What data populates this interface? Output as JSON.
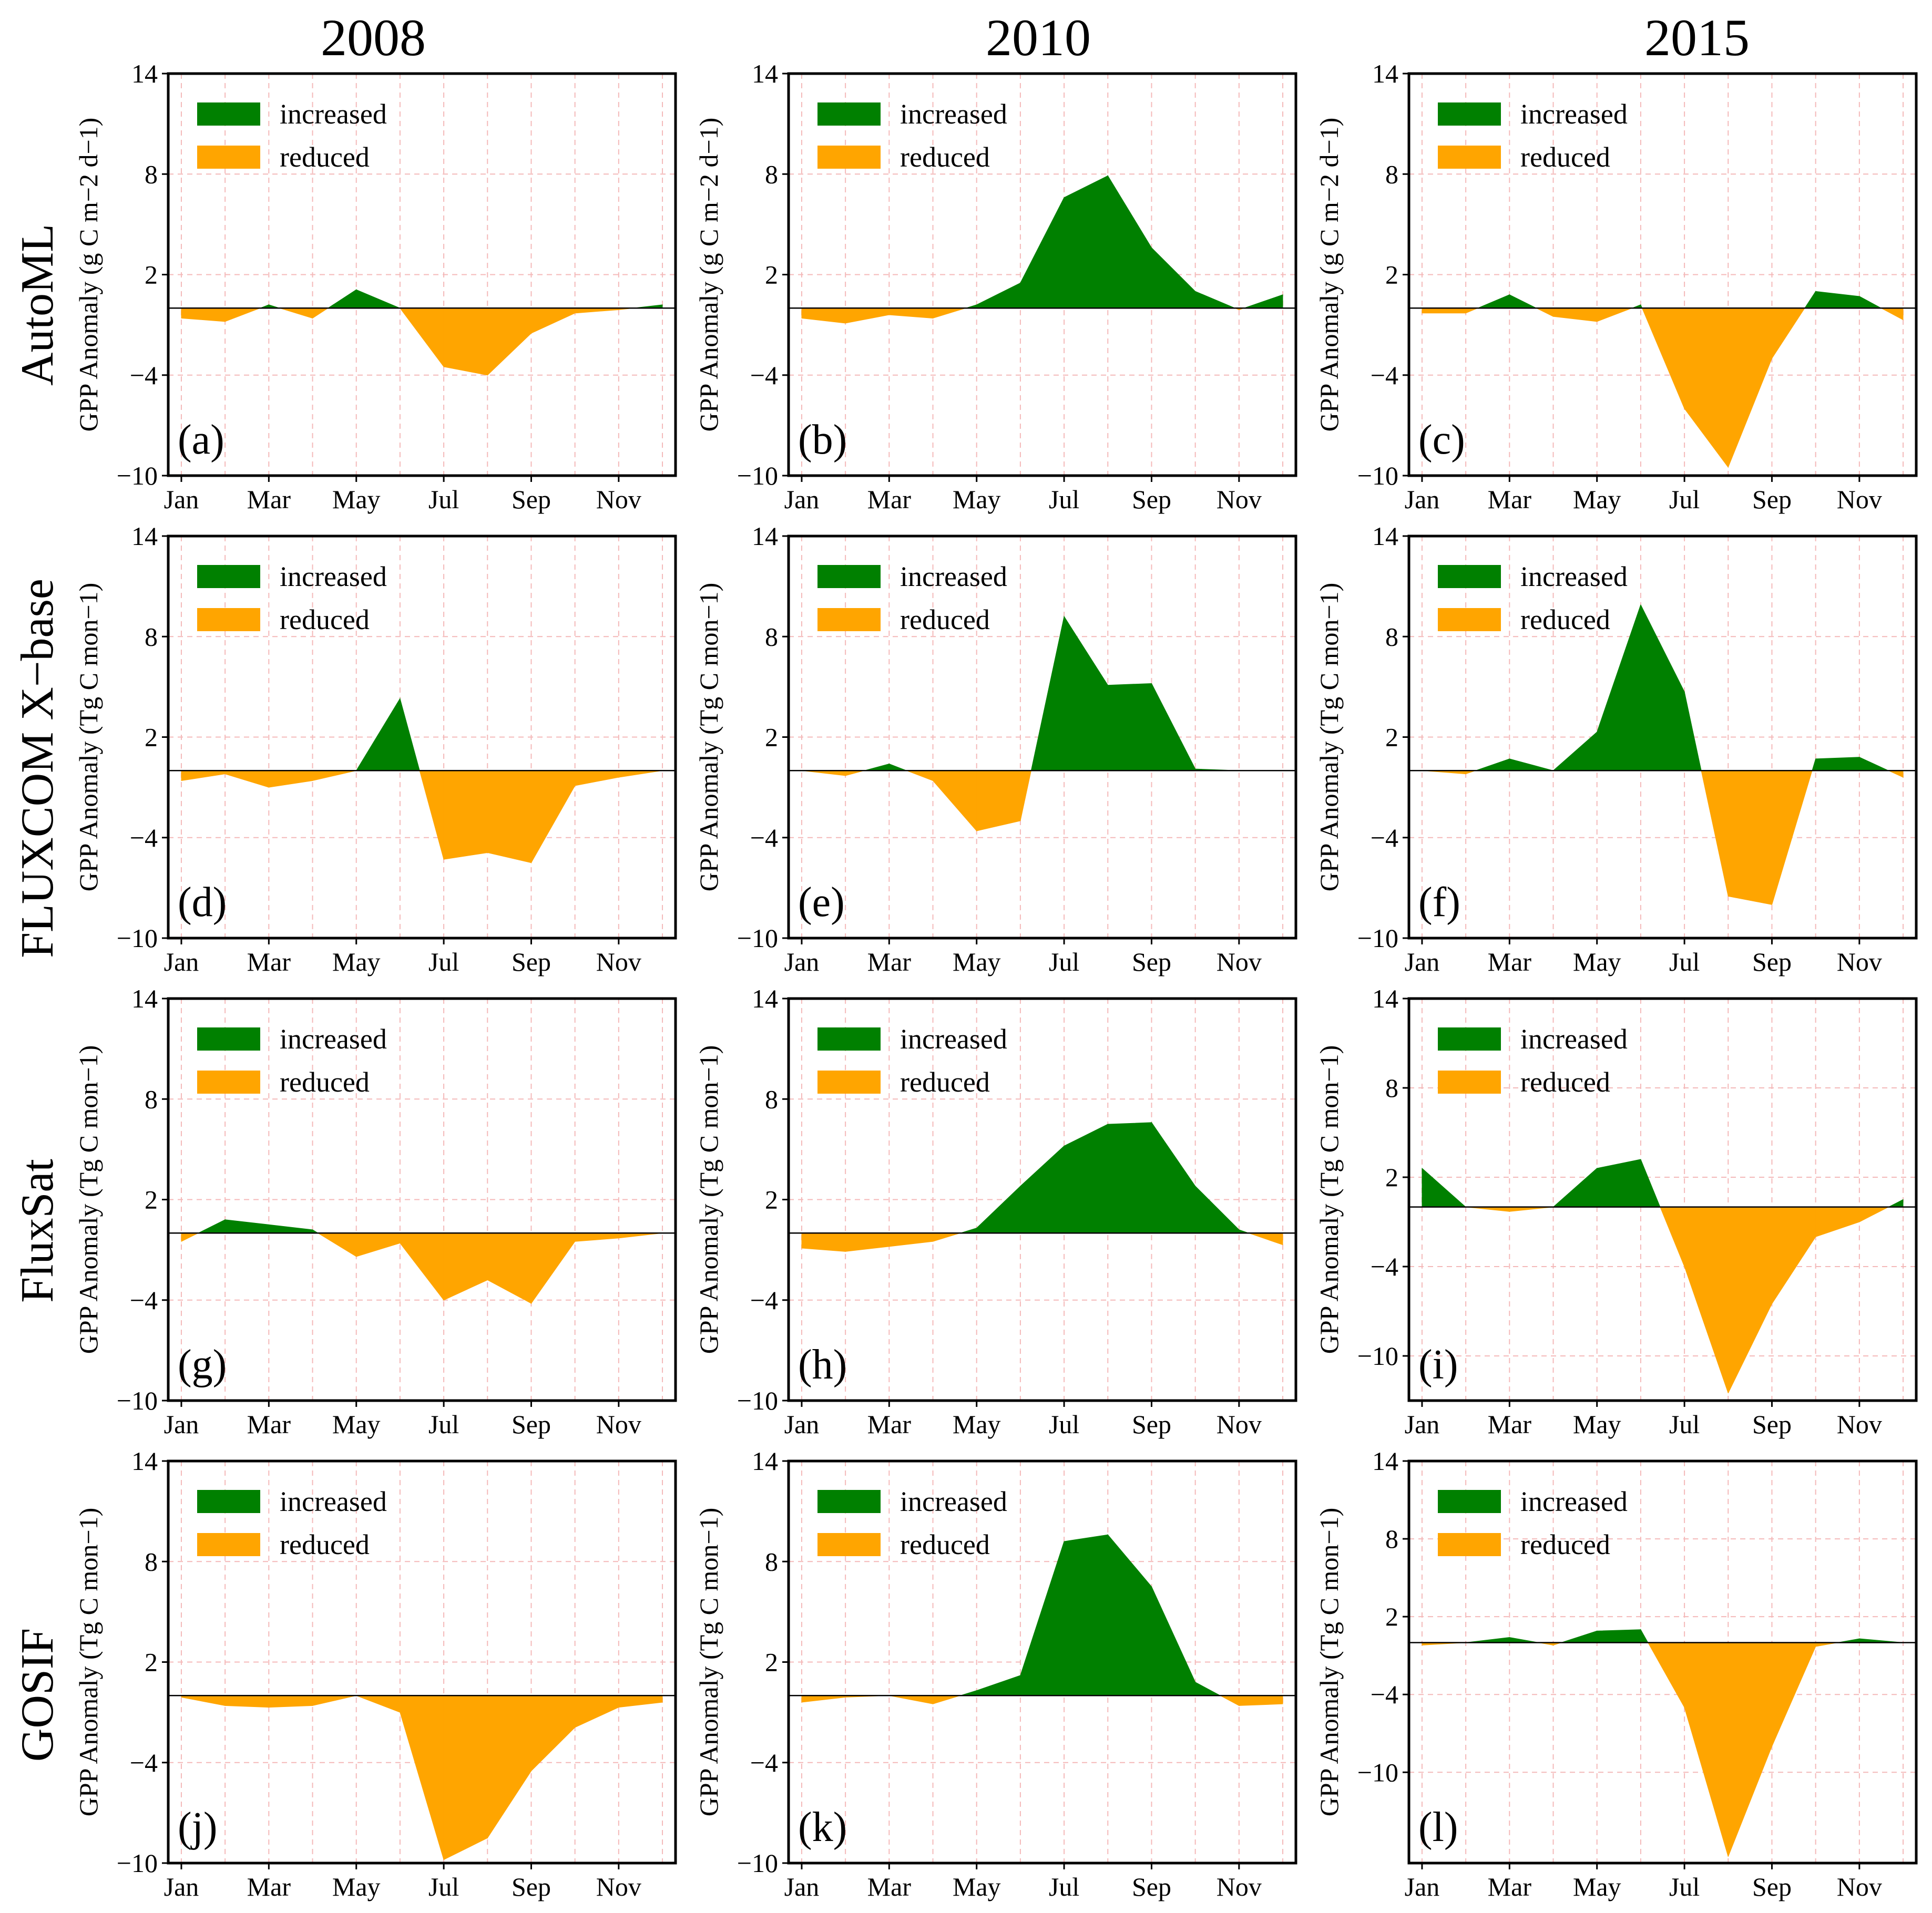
{
  "colors": {
    "increased": "#008000",
    "reduced": "#FFA500"
  },
  "column_titles": [
    "2008",
    "2010",
    "2015"
  ],
  "row_titles": [
    "AutoML",
    "FLUXCOM X−base",
    "FluxSat",
    "GOSIF"
  ],
  "chart_data": [
    {
      "type": "area",
      "panel_label": "(a)",
      "row": 0,
      "col": 0,
      "ylabel": "GPP Anomaly (g C m−2 d−1)",
      "ylim": [
        -10,
        14
      ],
      "yticks": [
        "14",
        "8",
        "2",
        "−4",
        "−10"
      ],
      "ytick_values": [
        14,
        8,
        2,
        -4,
        -10
      ],
      "xticks": [
        "Jan",
        "Mar",
        "May",
        "Jul",
        "Sep",
        "Nov"
      ],
      "legend": [
        "increased",
        "reduced"
      ],
      "x": [
        1,
        2,
        3,
        4,
        5,
        6,
        7,
        8,
        9,
        10,
        11,
        12
      ],
      "values": [
        -0.6,
        -0.8,
        0.2,
        -0.6,
        1.1,
        0,
        -3.5,
        -4,
        -1.5,
        -0.3,
        -0.1,
        0.2
      ]
    },
    {
      "type": "area",
      "panel_label": "(b)",
      "row": 0,
      "col": 1,
      "ylabel": "GPP Anomaly (g C m−2 d−1)",
      "ylim": [
        -10,
        14
      ],
      "yticks": [
        "14",
        "8",
        "2",
        "−4",
        "−10"
      ],
      "ytick_values": [
        14,
        8,
        2,
        -4,
        -10
      ],
      "xticks": [
        "Jan",
        "Mar",
        "May",
        "Jul",
        "Sep",
        "Nov"
      ],
      "legend": [
        "increased",
        "reduced"
      ],
      "x": [
        1,
        2,
        3,
        4,
        5,
        6,
        7,
        8,
        9,
        10,
        11,
        12
      ],
      "values": [
        -0.6,
        -0.9,
        -0.4,
        -0.6,
        0.2,
        1.5,
        6.6,
        7.9,
        3.6,
        1,
        -0.1,
        0.8
      ]
    },
    {
      "type": "area",
      "panel_label": "(c)",
      "row": 0,
      "col": 2,
      "ylabel": "GPP Anomaly (g C m−2 d−1)",
      "ylim": [
        -10,
        14
      ],
      "yticks": [
        "14",
        "8",
        "2",
        "−4",
        "−10"
      ],
      "ytick_values": [
        14,
        8,
        2,
        -4,
        -10
      ],
      "xticks": [
        "Jan",
        "Mar",
        "May",
        "Jul",
        "Sep",
        "Nov"
      ],
      "legend": [
        "increased",
        "reduced"
      ],
      "x": [
        1,
        2,
        3,
        4,
        5,
        6,
        7,
        8,
        9,
        10,
        11,
        12
      ],
      "values": [
        -0.3,
        -0.3,
        0.8,
        -0.5,
        -0.8,
        0.2,
        -6,
        -9.5,
        -3,
        1,
        0.7,
        -0.7
      ]
    },
    {
      "type": "area",
      "panel_label": "(d)",
      "row": 1,
      "col": 0,
      "ylabel": "GPP Anomaly (Tg C mon−1)",
      "ylim": [
        -10,
        14
      ],
      "yticks": [
        "14",
        "8",
        "2",
        "−4",
        "−10"
      ],
      "ytick_values": [
        14,
        8,
        2,
        -4,
        -10
      ],
      "xticks": [
        "Jan",
        "Mar",
        "May",
        "Jul",
        "Sep",
        "Nov"
      ],
      "legend": [
        "increased",
        "reduced"
      ],
      "x": [
        1,
        2,
        3,
        4,
        5,
        6,
        7,
        8,
        9,
        10,
        11,
        12
      ],
      "values": [
        -0.6,
        -0.2,
        -1,
        -0.6,
        0,
        4.3,
        -5.3,
        -4.9,
        -5.5,
        -0.9,
        -0.4,
        0
      ]
    },
    {
      "type": "area",
      "panel_label": "(e)",
      "row": 1,
      "col": 1,
      "ylabel": "GPP Anomaly (Tg C mon−1)",
      "ylim": [
        -10,
        14
      ],
      "yticks": [
        "14",
        "8",
        "2",
        "−4",
        "−10"
      ],
      "ytick_values": [
        14,
        8,
        2,
        -4,
        -10
      ],
      "xticks": [
        "Jan",
        "Mar",
        "May",
        "Jul",
        "Sep",
        "Nov"
      ],
      "legend": [
        "increased",
        "reduced"
      ],
      "x": [
        1,
        2,
        3,
        4,
        5,
        6,
        7,
        8,
        9,
        10,
        11,
        12
      ],
      "values": [
        0,
        -0.3,
        0.4,
        -0.6,
        -3.6,
        -3,
        9.2,
        5.1,
        5.2,
        0.1,
        0,
        0
      ]
    },
    {
      "type": "area",
      "panel_label": "(f)",
      "row": 1,
      "col": 2,
      "ylabel": "GPP Anomaly (Tg C mon−1)",
      "ylim": [
        -10,
        14
      ],
      "yticks": [
        "14",
        "8",
        "2",
        "−4",
        "−10"
      ],
      "ytick_values": [
        14,
        8,
        2,
        -4,
        -10
      ],
      "xticks": [
        "Jan",
        "Mar",
        "May",
        "Jul",
        "Sep",
        "Nov"
      ],
      "legend": [
        "increased",
        "reduced"
      ],
      "x": [
        1,
        2,
        3,
        4,
        5,
        6,
        7,
        8,
        9,
        10,
        11,
        12
      ],
      "values": [
        0,
        -0.2,
        0.7,
        0,
        2.3,
        9.9,
        4.7,
        -7.5,
        -8,
        0.7,
        0.8,
        -0.4
      ]
    },
    {
      "type": "area",
      "panel_label": "(g)",
      "row": 2,
      "col": 0,
      "ylabel": "GPP Anomaly (Tg C mon−1)",
      "ylim": [
        -10,
        14
      ],
      "yticks": [
        "14",
        "8",
        "2",
        "−4",
        "−10"
      ],
      "ytick_values": [
        14,
        8,
        2,
        -4,
        -10
      ],
      "xticks": [
        "Jan",
        "Mar",
        "May",
        "Jul",
        "Sep",
        "Nov"
      ],
      "legend": [
        "increased",
        "reduced"
      ],
      "x": [
        1,
        2,
        3,
        4,
        5,
        6,
        7,
        8,
        9,
        10,
        11,
        12
      ],
      "values": [
        -0.5,
        0.8,
        0.5,
        0.2,
        -1.4,
        -0.6,
        -4,
        -2.8,
        -4.2,
        -0.5,
        -0.3,
        0
      ]
    },
    {
      "type": "area",
      "panel_label": "(h)",
      "row": 2,
      "col": 1,
      "ylabel": "GPP Anomaly (Tg C mon−1)",
      "ylim": [
        -10,
        14
      ],
      "yticks": [
        "14",
        "8",
        "2",
        "−4",
        "−10"
      ],
      "ytick_values": [
        14,
        8,
        2,
        -4,
        -10
      ],
      "xticks": [
        "Jan",
        "Mar",
        "May",
        "Jul",
        "Sep",
        "Nov"
      ],
      "legend": [
        "increased",
        "reduced"
      ],
      "x": [
        1,
        2,
        3,
        4,
        5,
        6,
        7,
        8,
        9,
        10,
        11,
        12
      ],
      "values": [
        -0.9,
        -1.1,
        -0.8,
        -0.5,
        0.3,
        2.8,
        5.2,
        6.5,
        6.6,
        2.8,
        0.2,
        -0.7
      ]
    },
    {
      "type": "area",
      "panel_label": "(i)",
      "row": 2,
      "col": 2,
      "ylabel": "GPP Anomaly (Tg C mon−1)",
      "ylim": [
        -13,
        14
      ],
      "yticks": [
        "14",
        "8",
        "2",
        "−4",
        "−10"
      ],
      "ytick_values": [
        14,
        8,
        2,
        -4,
        -10
      ],
      "xticks": [
        "Jan",
        "Mar",
        "May",
        "Jul",
        "Sep",
        "Nov"
      ],
      "legend": [
        "increased",
        "reduced"
      ],
      "x": [
        1,
        2,
        3,
        4,
        5,
        6,
        7,
        8,
        9,
        10,
        11,
        12
      ],
      "values": [
        2.6,
        0,
        -0.3,
        0,
        2.6,
        3.2,
        -4,
        -12.5,
        -6.5,
        -2,
        -1,
        0.5
      ]
    },
    {
      "type": "area",
      "panel_label": "(j)",
      "row": 3,
      "col": 0,
      "ylabel": "GPP Anomaly (Tg C mon−1)",
      "ylim": [
        -10,
        14
      ],
      "yticks": [
        "14",
        "8",
        "2",
        "−4",
        "−10"
      ],
      "ytick_values": [
        14,
        8,
        2,
        -4,
        -10
      ],
      "xticks": [
        "Jan",
        "Mar",
        "May",
        "Jul",
        "Sep",
        "Nov"
      ],
      "legend": [
        "increased",
        "reduced"
      ],
      "x": [
        1,
        2,
        3,
        4,
        5,
        6,
        7,
        8,
        9,
        10,
        11,
        12
      ],
      "values": [
        -0.1,
        -0.6,
        -0.7,
        -0.6,
        0,
        -1,
        -9.8,
        -8.5,
        -4.5,
        -1.9,
        -0.7,
        -0.4
      ]
    },
    {
      "type": "area",
      "panel_label": "(k)",
      "row": 3,
      "col": 1,
      "ylabel": "GPP Anomaly (Tg C mon−1)",
      "ylim": [
        -10,
        14
      ],
      "yticks": [
        "14",
        "8",
        "2",
        "−4",
        "−10"
      ],
      "ytick_values": [
        14,
        8,
        2,
        -4,
        -10
      ],
      "xticks": [
        "Jan",
        "Mar",
        "May",
        "Jul",
        "Sep",
        "Nov"
      ],
      "legend": [
        "increased",
        "reduced"
      ],
      "x": [
        1,
        2,
        3,
        4,
        5,
        6,
        7,
        8,
        9,
        10,
        11,
        12
      ],
      "values": [
        -0.4,
        -0.1,
        0,
        -0.5,
        0.3,
        1.2,
        9.2,
        9.6,
        6.5,
        0.8,
        -0.6,
        -0.5
      ]
    },
    {
      "type": "area",
      "panel_label": "(l)",
      "row": 3,
      "col": 2,
      "ylabel": "GPP Anomaly (Tg C mon−1)",
      "ylim": [
        -17,
        14
      ],
      "yticks": [
        "14",
        "8",
        "2",
        "−4",
        "−10"
      ],
      "ytick_values": [
        14,
        8,
        2,
        -4,
        -10
      ],
      "xticks": [
        "Jan",
        "Mar",
        "May",
        "Jul",
        "Sep",
        "Nov"
      ],
      "legend": [
        "increased",
        "reduced"
      ],
      "x": [
        1,
        2,
        3,
        4,
        5,
        6,
        7,
        8,
        9,
        10,
        11,
        12
      ],
      "values": [
        -0.2,
        0,
        0.4,
        -0.2,
        0.9,
        1,
        -5,
        -16.5,
        -8,
        -0.3,
        0.3,
        0
      ]
    }
  ]
}
